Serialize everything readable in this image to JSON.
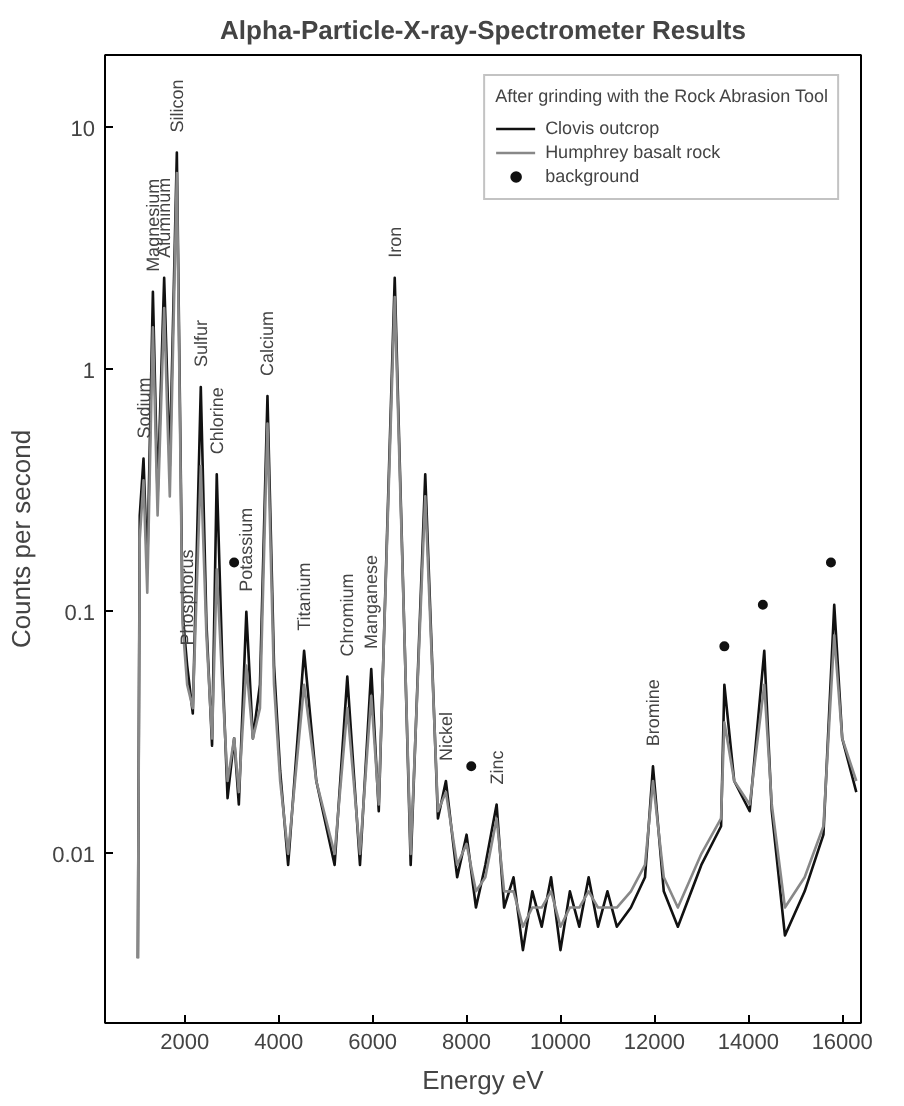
{
  "chart_data": {
    "type": "line",
    "title": "Alpha-Particle-X-ray-Spectrometer Results",
    "xlabel": "Energy eV",
    "ylabel": "Counts per second",
    "legend_title": "After grinding with the Rock Abrasion Tool",
    "log": "y",
    "grid": false,
    "legend": "top right",
    "line_style": "solid",
    "marker": "none",
    "xlim": [
      300,
      16400
    ],
    "ylim": [
      0.002,
      20
    ],
    "xticks": [
      2000,
      4000,
      6000,
      8000,
      10000,
      12000,
      14000,
      16000
    ],
    "yticks": [
      0.01,
      0.1,
      1,
      10
    ],
    "series": [
      {
        "name": "Clovis outcrop",
        "color": "#111111",
        "x": [
          1000,
          1040,
          1120,
          1200,
          1320,
          1420,
          1560,
          1680,
          1830,
          1950,
          2050,
          2170,
          2340,
          2460,
          2580,
          2680,
          2800,
          2910,
          3050,
          3150,
          3310,
          3450,
          3600,
          3760,
          3900,
          4030,
          4200,
          4540,
          4800,
          5190,
          5460,
          5730,
          5970,
          6130,
          6470,
          6810,
          7120,
          7390,
          7560,
          7800,
          8000,
          8200,
          8400,
          8640,
          8800,
          9000,
          9200,
          9400,
          9600,
          9800,
          10000,
          10200,
          10400,
          10600,
          10800,
          11000,
          11200,
          11500,
          11800,
          11970,
          12200,
          12500,
          13000,
          13420,
          13490,
          13700,
          14030,
          14340,
          14500,
          14780,
          15200,
          15600,
          15830,
          16000,
          16300
        ],
        "values": [
          0.0037,
          0.25,
          0.43,
          0.15,
          2.1,
          0.3,
          2.4,
          0.4,
          7.9,
          0.1,
          0.06,
          0.038,
          0.85,
          0.09,
          0.028,
          0.37,
          0.06,
          0.017,
          0.03,
          0.016,
          0.1,
          0.03,
          0.05,
          0.78,
          0.06,
          0.022,
          0.009,
          0.069,
          0.02,
          0.009,
          0.054,
          0.009,
          0.058,
          0.015,
          2.4,
          0.009,
          0.37,
          0.014,
          0.02,
          0.008,
          0.012,
          0.006,
          0.009,
          0.016,
          0.006,
          0.008,
          0.004,
          0.007,
          0.005,
          0.008,
          0.004,
          0.007,
          0.005,
          0.008,
          0.005,
          0.007,
          0.005,
          0.006,
          0.008,
          0.023,
          0.007,
          0.005,
          0.009,
          0.013,
          0.05,
          0.02,
          0.015,
          0.069,
          0.015,
          0.0046,
          0.007,
          0.012,
          0.107,
          0.03,
          0.018
        ]
      },
      {
        "name": "Humphrey basalt rock",
        "color": "#888888",
        "x": [
          1000,
          1040,
          1120,
          1200,
          1320,
          1420,
          1560,
          1680,
          1830,
          1950,
          2050,
          2170,
          2340,
          2460,
          2580,
          2680,
          2800,
          2910,
          3050,
          3150,
          3310,
          3450,
          3600,
          3760,
          3900,
          4030,
          4200,
          4540,
          4800,
          5190,
          5460,
          5730,
          5970,
          6130,
          6470,
          6810,
          7120,
          7390,
          7560,
          7800,
          8000,
          8200,
          8400,
          8640,
          8800,
          9000,
          9200,
          9400,
          9600,
          9800,
          10000,
          10200,
          10400,
          10600,
          10800,
          11000,
          11200,
          11500,
          11800,
          11970,
          12200,
          12500,
          13000,
          13420,
          13490,
          13700,
          14030,
          14340,
          14500,
          14780,
          15200,
          15600,
          15830,
          16000,
          16300
        ],
        "values": [
          0.0037,
          0.2,
          0.35,
          0.12,
          1.5,
          0.25,
          1.8,
          0.3,
          6.5,
          0.09,
          0.05,
          0.04,
          0.4,
          0.08,
          0.03,
          0.15,
          0.05,
          0.02,
          0.03,
          0.018,
          0.06,
          0.03,
          0.04,
          0.6,
          0.05,
          0.02,
          0.01,
          0.05,
          0.02,
          0.01,
          0.04,
          0.01,
          0.045,
          0.016,
          2.0,
          0.01,
          0.3,
          0.015,
          0.018,
          0.009,
          0.011,
          0.007,
          0.008,
          0.014,
          0.007,
          0.007,
          0.005,
          0.006,
          0.006,
          0.007,
          0.005,
          0.006,
          0.006,
          0.007,
          0.006,
          0.006,
          0.006,
          0.007,
          0.009,
          0.02,
          0.008,
          0.006,
          0.01,
          0.014,
          0.035,
          0.02,
          0.016,
          0.05,
          0.016,
          0.006,
          0.008,
          0.013,
          0.08,
          0.03,
          0.02
        ]
      },
      {
        "name": "background",
        "type": "scatter",
        "marker": "circle",
        "color": "#111111",
        "x": [
          3050,
          8100,
          13490,
          14310,
          15760
        ],
        "values": [
          0.16,
          0.023,
          0.072,
          0.107,
          0.16
        ]
      }
    ],
    "annotations": [
      {
        "text": "Sodium",
        "x": 1120,
        "y": 0.43
      },
      {
        "text": "Magnesium",
        "x": 1320,
        "y": 2.1
      },
      {
        "text": "Aluminum",
        "x": 1560,
        "y": 2.4
      },
      {
        "text": "Silicon",
        "x": 1830,
        "y": 7.9
      },
      {
        "text": "Phosphorus",
        "x": 2050,
        "y": 0.06
      },
      {
        "text": "Sulfur",
        "x": 2340,
        "y": 0.85
      },
      {
        "text": "Chlorine",
        "x": 2680,
        "y": 0.37
      },
      {
        "text": "Potassium",
        "x": 3310,
        "y": 0.1
      },
      {
        "text": "Calcium",
        "x": 3760,
        "y": 0.78
      },
      {
        "text": "Titanium",
        "x": 4540,
        "y": 0.069
      },
      {
        "text": "Chromium",
        "x": 5460,
        "y": 0.054
      },
      {
        "text": "Manganese",
        "x": 5970,
        "y": 0.058
      },
      {
        "text": "Iron",
        "x": 6470,
        "y": 2.4
      },
      {
        "text": "Nickel",
        "x": 7560,
        "y": 0.02
      },
      {
        "text": "Zinc",
        "x": 8640,
        "y": 0.016
      },
      {
        "text": "Bromine",
        "x": 11970,
        "y": 0.023
      }
    ]
  }
}
